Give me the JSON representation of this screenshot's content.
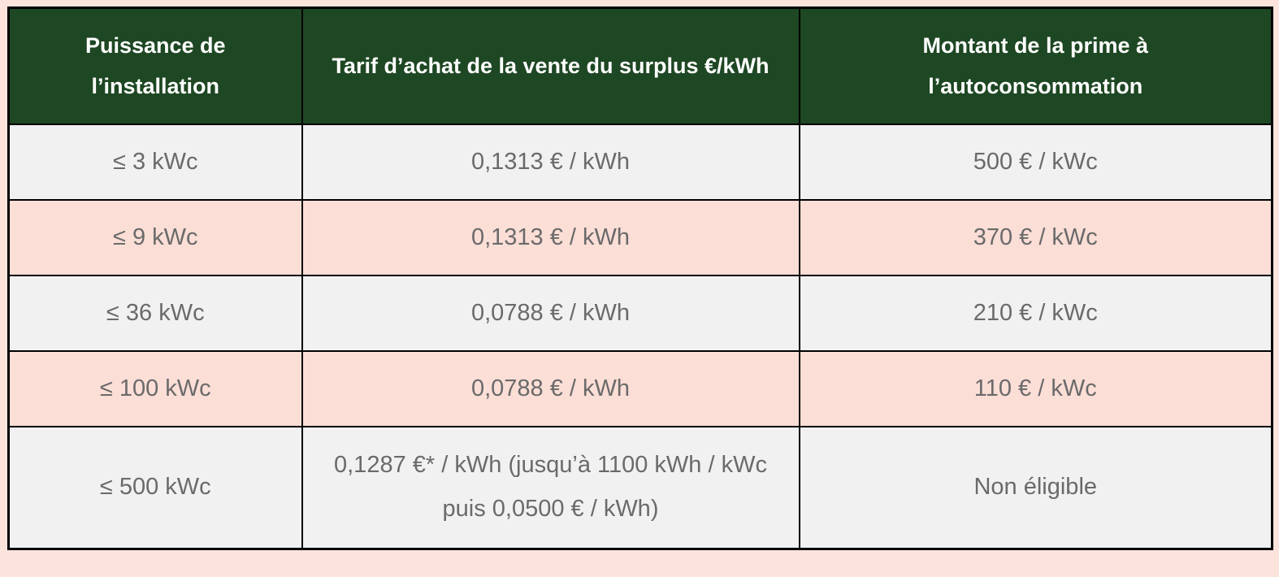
{
  "chart_data": {
    "type": "table",
    "columns": [
      "Puissance de l’installation",
      "Tarif d’achat de la vente du surplus €/kWh",
      "Montant de la prime à l’autoconsommation"
    ],
    "rows": [
      [
        "≤ 3 kWc",
        "0,1313 € / kWh",
        "500 € / kWc"
      ],
      [
        "≤ 9 kWc",
        "0,1313 € / kWh",
        "370 € / kWc"
      ],
      [
        "≤ 36 kWc",
        "0,0788 € / kWh",
        "210 € / kWc"
      ],
      [
        "≤ 100 kWc",
        "0,0788 € / kWh",
        "110 € / kWc"
      ],
      [
        "≤ 500 kWc",
        "0,1287 €* / kWh (jusqu’à 1100 kWh / kWc puis 0,0500 € / kWh)",
        "Non éligible"
      ]
    ],
    "layout": {
      "legend": "none",
      "grid": "black cell borders",
      "row_striping": [
        "gray",
        "pink",
        "gray",
        "pink",
        "gray"
      ]
    }
  },
  "style": {
    "header_bg": "#1e4723",
    "header_text_color": "#ffffff",
    "row_gray_bg": "#f1f1f1",
    "row_pink_bg": "#fbded6",
    "page_bg": "#fce4dd",
    "border_color": "#000000",
    "body_text_color": "#6a6a6a"
  }
}
